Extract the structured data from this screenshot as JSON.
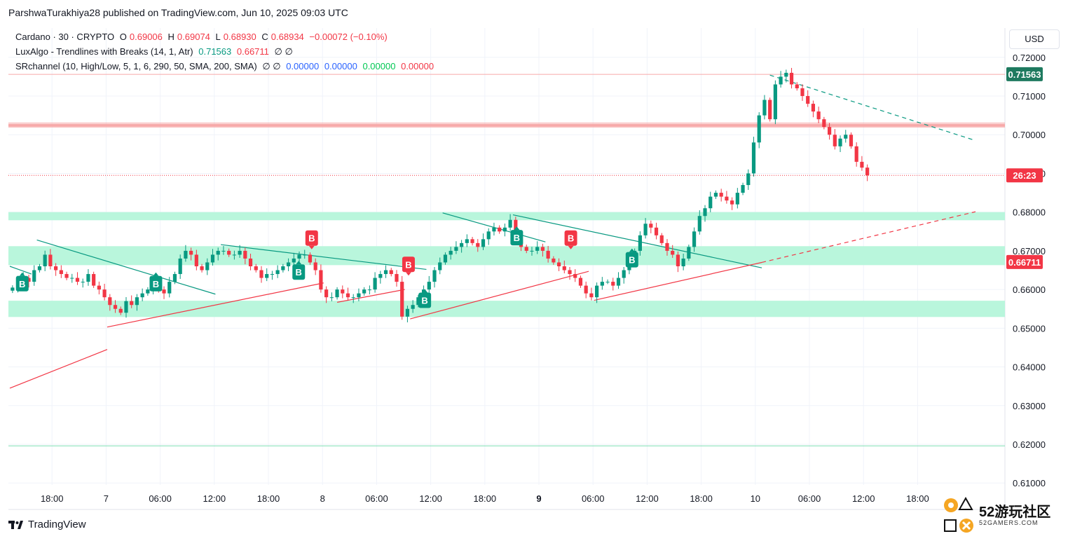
{
  "header": {
    "publisher": "ParshwaTurakhiya28 published on TradingView.com, Jun 10, 2025 09:03 UTC"
  },
  "legend": {
    "symbol": "Cardano · 30 · CRYPTO",
    "o_label": "O",
    "o_value": "0.69006",
    "h_label": "H",
    "h_value": "0.69074",
    "l_label": "L",
    "l_value": "0.68930",
    "c_label": "C",
    "c_value": "0.68934",
    "change": "−0.00072 (−0.10%)",
    "ind1_name": "LuxAlgo - Trendlines with Breaks (14, 1, Atr)",
    "ind1_v1": "0.71563",
    "ind1_v2": "0.66711",
    "ind1_na": "∅  ∅",
    "ind2_name": "SRchannel (10, High/Low, 5, 1, 6, 290, 50, SMA, 200, SMA)",
    "ind2_na": "∅  ∅",
    "ind2_v1": "0.00000",
    "ind2_v2": "0.00000",
    "ind2_v3": "0.00000",
    "ind2_v4": "0.00000"
  },
  "currency_button": "USD",
  "footer": {
    "brand": "TradingView"
  },
  "watermark": {
    "title": "52游玩社区",
    "subtitle": "52GAMERS.COM"
  },
  "colors": {
    "up": "#089981",
    "down": "#f23645",
    "zone": "#b9f6dc",
    "resistance": "#f7a9a9",
    "teal_line": "#089981",
    "red_line": "#f23645"
  },
  "chart_data": {
    "type": "candlestick",
    "instrument": "Cardano · 30 · CRYPTO",
    "currency": "USD",
    "ylim": [
      0.6095,
      0.7225
    ],
    "y_ticks": [
      "0.72000",
      "0.71000",
      "0.70000",
      "0.69000",
      "0.68000",
      "0.67000",
      "0.66000",
      "0.65000",
      "0.64000",
      "0.63000",
      "0.62000",
      "0.61000"
    ],
    "x_ticks": [
      {
        "label": "18:00",
        "slot": 7.8
      },
      {
        "label": "7",
        "slot": 17.8
      },
      {
        "label": "06:00",
        "slot": 27.8
      },
      {
        "label": "12:00",
        "slot": 37.8
      },
      {
        "label": "18:00",
        "slot": 47.8
      },
      {
        "label": "8",
        "slot": 57.8
      },
      {
        "label": "06:00",
        "slot": 67.8
      },
      {
        "label": "12:00",
        "slot": 77.8
      },
      {
        "label": "18:00",
        "slot": 87.8
      },
      {
        "label": "9",
        "slot": 97.8
      },
      {
        "label": "06:00",
        "slot": 107.8
      },
      {
        "label": "12:00",
        "slot": 117.8
      },
      {
        "label": "18:00",
        "slot": 127.8
      },
      {
        "label": "10",
        "slot": 137.8
      },
      {
        "label": "06:00",
        "slot": 147.8
      },
      {
        "label": "12:00",
        "slot": 157.8
      },
      {
        "label": "18:00",
        "slot": 167.8
      }
    ],
    "bold_x_ticks": [
      "9"
    ],
    "closes": [
      0.6605,
      0.6625,
      0.663,
      0.662,
      0.665,
      0.666,
      0.669,
      0.666,
      0.665,
      0.664,
      0.663,
      0.663,
      0.662,
      0.662,
      0.664,
      0.661,
      0.66,
      0.658,
      0.656,
      0.655,
      0.654,
      0.657,
      0.656,
      0.658,
      0.659,
      0.66,
      0.662,
      0.66,
      0.659,
      0.662,
      0.664,
      0.668,
      0.67,
      0.669,
      0.666,
      0.665,
      0.667,
      0.669,
      0.67,
      0.67,
      0.669,
      0.669,
      0.67,
      0.668,
      0.666,
      0.665,
      0.663,
      0.664,
      0.664,
      0.665,
      0.666,
      0.667,
      0.668,
      0.669,
      0.669,
      0.667,
      0.665,
      0.66,
      0.658,
      0.658,
      0.66,
      0.659,
      0.658,
      0.658,
      0.659,
      0.66,
      0.66,
      0.663,
      0.664,
      0.665,
      0.664,
      0.662,
      0.653,
      0.655,
      0.656,
      0.658,
      0.66,
      0.662,
      0.665,
      0.667,
      0.669,
      0.67,
      0.671,
      0.672,
      0.673,
      0.672,
      0.671,
      0.673,
      0.675,
      0.676,
      0.675,
      0.676,
      0.678,
      0.673,
      0.671,
      0.67,
      0.67,
      0.671,
      0.67,
      0.668,
      0.667,
      0.666,
      0.665,
      0.664,
      0.663,
      0.661,
      0.659,
      0.658,
      0.661,
      0.662,
      0.662,
      0.661,
      0.663,
      0.665,
      0.667,
      0.67,
      0.674,
      0.677,
      0.676,
      0.674,
      0.672,
      0.67,
      0.669,
      0.666,
      0.668,
      0.671,
      0.675,
      0.679,
      0.681,
      0.684,
      0.685,
      0.684,
      0.683,
      0.682,
      0.685,
      0.687,
      0.69,
      0.698,
      0.705,
      0.709,
      0.704,
      0.713,
      0.715,
      0.716,
      0.713,
      0.712,
      0.71,
      0.708,
      0.706,
      0.704,
      0.702,
      0.7,
      0.697,
      0.699,
      0.7,
      0.697,
      0.693,
      0.6915,
      0.6895
    ]
  },
  "price_labels": {
    "last_high": "0.71563",
    "countdown": "26:23",
    "lower_line": "0.66711"
  },
  "markers": [
    {
      "type": "B",
      "dir": "up",
      "slot": 2.3,
      "price": 0.6635
    },
    {
      "type": "B",
      "dir": "up",
      "slot": 27.0,
      "price": 0.6635
    },
    {
      "type": "B",
      "dir": "up",
      "slot": 53.4,
      "price": 0.6665
    },
    {
      "type": "B",
      "dir": "down",
      "slot": 55.8,
      "price": 0.6713
    },
    {
      "type": "B",
      "dir": "down",
      "slot": 73.7,
      "price": 0.6645
    },
    {
      "type": "B",
      "dir": "up",
      "slot": 76.7,
      "price": 0.6592
    },
    {
      "type": "B",
      "dir": "up",
      "slot": 93.7,
      "price": 0.6754
    },
    {
      "type": "B",
      "dir": "down",
      "slot": 103.7,
      "price": 0.6713
    },
    {
      "type": "B",
      "dir": "up",
      "slot": 115.0,
      "price": 0.6697
    }
  ]
}
